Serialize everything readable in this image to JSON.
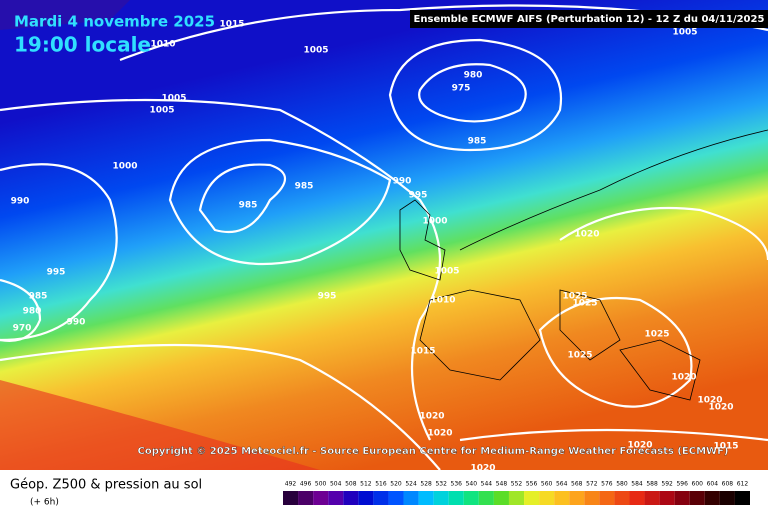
{
  "header": {
    "date": "Mardi 4 novembre 2025",
    "time": "19:00 locale",
    "model": "Ensemble ECMWF AIFS  (Perturbation 12)  - 12 Z du 04/11/2025"
  },
  "copyright": "Copyright © 2025 Meteociel.fr - Source European Centre for Medium-Range Weather Forecasts (ECMWF)",
  "isobar_labels": [
    "1015",
    "1010",
    "1005",
    "1005",
    "1005",
    "980",
    "975",
    "985",
    "1000",
    "985",
    "985",
    "990",
    "995",
    "1000",
    "990",
    "995",
    "1020",
    "1005",
    "995",
    "985",
    "980",
    "970",
    "990",
    "1010",
    "1025",
    "1025",
    "1025",
    "1015",
    "1025",
    "1020",
    "1020",
    "1020",
    "1020",
    "1020",
    "1020",
    "1015",
    "1020",
    "1005"
  ],
  "footer": {
    "title": "Géop. Z500 & pression au sol",
    "step": "(+ 6h)"
  },
  "scale": [
    492,
    496,
    500,
    504,
    508,
    512,
    516,
    520,
    524,
    528,
    532,
    536,
    540,
    544,
    548,
    552,
    556,
    560,
    564,
    568,
    572,
    576,
    580,
    584,
    588,
    592,
    596,
    600,
    604,
    608,
    612
  ]
}
